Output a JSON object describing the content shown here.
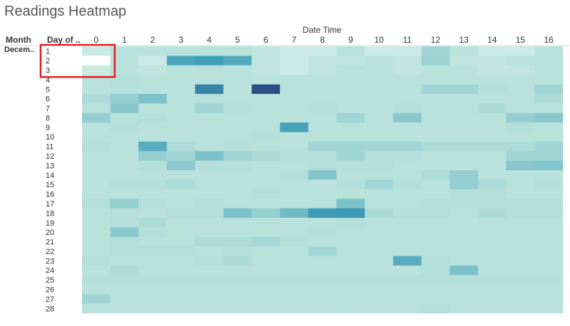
{
  "title": "Readings Heatmap",
  "chart_data": {
    "type": "heatmap",
    "title": "Readings Heatmap",
    "column_header": "Date Time",
    "row_headers": [
      "Month",
      "Day of .."
    ],
    "month_label": "Decem..",
    "x": [
      0,
      1,
      2,
      3,
      4,
      5,
      6,
      7,
      8,
      9,
      10,
      11,
      12,
      13,
      14,
      15,
      16
    ],
    "y": [
      1,
      2,
      3,
      4,
      5,
      6,
      7,
      8,
      9,
      10,
      11,
      12,
      13,
      14,
      15,
      16,
      17,
      18,
      19,
      20,
      21,
      22,
      23,
      24,
      25,
      26,
      27,
      28
    ],
    "color_scale": {
      "min_color": "#ffffff",
      "low_color": "#b9e2dc",
      "mid_color": "#3f9fb8",
      "max_color": "#2a4f86",
      "range": [
        0,
        1
      ]
    },
    "values": [
      [
        0.15,
        0.2,
        0.2,
        0.2,
        0.2,
        0.2,
        0.18,
        0.15,
        0.15,
        0.2,
        0.15,
        0.15,
        0.3,
        0.2,
        0.15,
        0.15,
        0.2
      ],
      [
        0.0,
        0.2,
        0.15,
        0.65,
        0.7,
        0.62,
        0.18,
        0.15,
        0.18,
        0.18,
        0.2,
        0.18,
        0.32,
        0.18,
        0.18,
        0.2,
        0.2
      ],
      [
        0.15,
        0.2,
        0.18,
        0.2,
        0.2,
        0.2,
        0.18,
        0.15,
        0.18,
        0.2,
        0.2,
        0.18,
        0.2,
        0.2,
        0.18,
        0.18,
        0.2
      ],
      [
        0.2,
        0.22,
        0.2,
        0.2,
        0.2,
        0.2,
        0.2,
        0.2,
        0.2,
        0.2,
        0.2,
        0.2,
        0.2,
        0.2,
        0.2,
        0.2,
        0.2
      ],
      [
        0.2,
        0.22,
        0.2,
        0.2,
        0.8,
        0.2,
        1.0,
        0.2,
        0.2,
        0.2,
        0.2,
        0.2,
        0.3,
        0.3,
        0.22,
        0.2,
        0.3
      ],
      [
        0.25,
        0.35,
        0.45,
        0.2,
        0.22,
        0.2,
        0.2,
        0.2,
        0.2,
        0.2,
        0.2,
        0.2,
        0.2,
        0.2,
        0.2,
        0.2,
        0.25
      ],
      [
        0.2,
        0.4,
        0.2,
        0.2,
        0.3,
        0.22,
        0.2,
        0.2,
        0.22,
        0.2,
        0.2,
        0.22,
        0.2,
        0.2,
        0.25,
        0.2,
        0.2
      ],
      [
        0.35,
        0.2,
        0.22,
        0.2,
        0.2,
        0.2,
        0.2,
        0.2,
        0.2,
        0.3,
        0.2,
        0.4,
        0.2,
        0.2,
        0.2,
        0.35,
        0.4
      ],
      [
        0.2,
        0.22,
        0.2,
        0.2,
        0.2,
        0.2,
        0.2,
        0.68,
        0.2,
        0.2,
        0.2,
        0.2,
        0.2,
        0.2,
        0.2,
        0.22,
        0.2
      ],
      [
        0.2,
        0.2,
        0.2,
        0.2,
        0.2,
        0.2,
        0.22,
        0.2,
        0.2,
        0.2,
        0.2,
        0.2,
        0.2,
        0.2,
        0.2,
        0.2,
        0.2
      ],
      [
        0.22,
        0.2,
        0.6,
        0.25,
        0.2,
        0.22,
        0.2,
        0.2,
        0.3,
        0.3,
        0.3,
        0.3,
        0.25,
        0.25,
        0.25,
        0.25,
        0.3
      ],
      [
        0.2,
        0.2,
        0.35,
        0.3,
        0.45,
        0.3,
        0.25,
        0.22,
        0.22,
        0.3,
        0.22,
        0.22,
        0.2,
        0.2,
        0.2,
        0.3,
        0.3
      ],
      [
        0.2,
        0.2,
        0.22,
        0.38,
        0.22,
        0.22,
        0.2,
        0.2,
        0.22,
        0.22,
        0.22,
        0.2,
        0.2,
        0.2,
        0.2,
        0.4,
        0.42
      ],
      [
        0.2,
        0.2,
        0.2,
        0.2,
        0.2,
        0.2,
        0.2,
        0.22,
        0.42,
        0.2,
        0.2,
        0.2,
        0.25,
        0.35,
        0.2,
        0.2,
        0.2
      ],
      [
        0.2,
        0.22,
        0.22,
        0.25,
        0.2,
        0.2,
        0.2,
        0.2,
        0.2,
        0.22,
        0.3,
        0.22,
        0.2,
        0.35,
        0.25,
        0.2,
        0.22
      ],
      [
        0.2,
        0.2,
        0.2,
        0.2,
        0.2,
        0.2,
        0.22,
        0.2,
        0.2,
        0.2,
        0.2,
        0.2,
        0.2,
        0.22,
        0.22,
        0.2,
        0.2
      ],
      [
        0.22,
        0.35,
        0.22,
        0.2,
        0.22,
        0.2,
        0.2,
        0.2,
        0.2,
        0.45,
        0.2,
        0.2,
        0.22,
        0.22,
        0.22,
        0.22,
        0.22
      ],
      [
        0.2,
        0.22,
        0.2,
        0.22,
        0.22,
        0.45,
        0.35,
        0.5,
        0.72,
        0.72,
        0.25,
        0.22,
        0.22,
        0.2,
        0.25,
        0.22,
        0.22
      ],
      [
        0.2,
        0.22,
        0.25,
        0.2,
        0.2,
        0.2,
        0.2,
        0.2,
        0.2,
        0.22,
        0.2,
        0.2,
        0.2,
        0.2,
        0.2,
        0.2,
        0.2
      ],
      [
        0.2,
        0.4,
        0.22,
        0.2,
        0.2,
        0.2,
        0.2,
        0.2,
        0.22,
        0.2,
        0.2,
        0.2,
        0.2,
        0.2,
        0.2,
        0.2,
        0.2
      ],
      [
        0.2,
        0.22,
        0.2,
        0.2,
        0.25,
        0.25,
        0.28,
        0.22,
        0.2,
        0.2,
        0.2,
        0.2,
        0.2,
        0.2,
        0.2,
        0.2,
        0.2
      ],
      [
        0.2,
        0.22,
        0.22,
        0.22,
        0.2,
        0.22,
        0.2,
        0.2,
        0.3,
        0.2,
        0.2,
        0.2,
        0.2,
        0.2,
        0.2,
        0.2,
        0.2
      ],
      [
        0.22,
        0.2,
        0.2,
        0.2,
        0.22,
        0.25,
        0.2,
        0.2,
        0.2,
        0.2,
        0.2,
        0.6,
        0.22,
        0.2,
        0.2,
        0.2,
        0.2
      ],
      [
        0.2,
        0.25,
        0.2,
        0.2,
        0.2,
        0.2,
        0.2,
        0.2,
        0.2,
        0.2,
        0.2,
        0.2,
        0.22,
        0.45,
        0.2,
        0.2,
        0.2
      ],
      [
        0.22,
        0.22,
        0.22,
        0.22,
        0.22,
        0.22,
        0.22,
        0.22,
        0.22,
        0.22,
        0.22,
        0.22,
        0.22,
        0.22,
        0.22,
        0.22,
        0.22
      ],
      [
        0.2,
        0.2,
        0.2,
        0.2,
        0.2,
        0.2,
        0.2,
        0.2,
        0.2,
        0.2,
        0.2,
        0.2,
        0.2,
        0.2,
        0.2,
        0.2,
        0.2
      ],
      [
        0.3,
        0.2,
        0.2,
        0.2,
        0.2,
        0.2,
        0.2,
        0.2,
        0.2,
        0.2,
        0.2,
        0.2,
        0.2,
        0.2,
        0.2,
        0.2,
        0.2
      ],
      [
        0.2,
        0.2,
        0.2,
        0.2,
        0.2,
        0.2,
        0.2,
        0.2,
        0.2,
        0.2,
        0.2,
        0.2,
        0.22,
        0.2,
        0.2,
        0.2,
        0.2
      ]
    ],
    "highlight": {
      "rows": [
        1,
        3
      ],
      "color": "#e02020"
    }
  }
}
